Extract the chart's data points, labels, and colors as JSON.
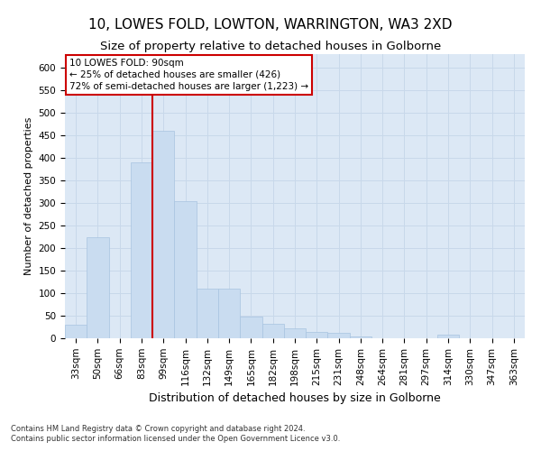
{
  "title": "10, LOWES FOLD, LOWTON, WARRINGTON, WA3 2XD",
  "subtitle": "Size of property relative to detached houses in Golborne",
  "xlabel": "Distribution of detached houses by size in Golborne",
  "ylabel": "Number of detached properties",
  "footnote1": "Contains HM Land Registry data © Crown copyright and database right 2024.",
  "footnote2": "Contains public sector information licensed under the Open Government Licence v3.0.",
  "categories": [
    "33sqm",
    "50sqm",
    "66sqm",
    "83sqm",
    "99sqm",
    "116sqm",
    "132sqm",
    "149sqm",
    "165sqm",
    "182sqm",
    "198sqm",
    "215sqm",
    "231sqm",
    "248sqm",
    "264sqm",
    "281sqm",
    "297sqm",
    "314sqm",
    "330sqm",
    "347sqm",
    "363sqm"
  ],
  "values": [
    30,
    225,
    0,
    390,
    460,
    305,
    110,
    110,
    48,
    33,
    22,
    15,
    13,
    5,
    0,
    0,
    0,
    8,
    0,
    0,
    0
  ],
  "bar_color": "#c9dcf0",
  "bar_edge_color": "#a8c4e0",
  "vline_color": "#cc0000",
  "vline_pos": 3.5,
  "annotation_title": "10 LOWES FOLD: 90sqm",
  "annotation_line1": "← 25% of detached houses are smaller (426)",
  "annotation_line2": "72% of semi-detached houses are larger (1,223) →",
  "annotation_box_color": "#cc0000",
  "ylim": [
    0,
    630
  ],
  "yticks": [
    0,
    50,
    100,
    150,
    200,
    250,
    300,
    350,
    400,
    450,
    500,
    550,
    600
  ],
  "grid_color": "#c8d8ea",
  "background_color": "#dce8f5",
  "title_fontsize": 11,
  "subtitle_fontsize": 9.5,
  "ylabel_fontsize": 8,
  "xlabel_fontsize": 9,
  "tick_fontsize": 7.5,
  "footnote_fontsize": 6
}
